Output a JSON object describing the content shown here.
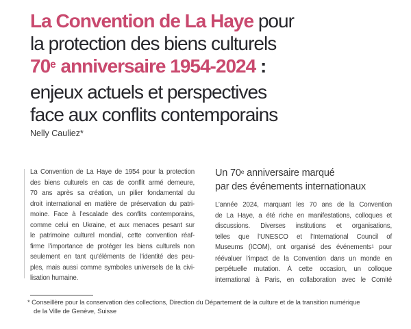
{
  "palette": {
    "accent": "#c9496e",
    "title_dark": "#26262b",
    "body_text": "#3e3e3e",
    "background": "#ffffff"
  },
  "title": {
    "line1_highlight": "La Convention de La Haye",
    "line1_rest": " pour",
    "line2": "la protection des biens culturels",
    "line3_prefix": "70",
    "line3_sup": "e",
    "line3_rest": " anniversaire 1954-2024",
    "line3_colon": " :",
    "line4": "enjeux actuels et perspectives",
    "line5": "face aux conflits contemporains"
  },
  "author": "Nelly Cauliez*",
  "abstract": {
    "lines": [
      "La Convention de La Haye de 1954 pour la protection",
      "des biens culturels en cas de conflit armé demeure,",
      "70 ans après sa création, un pilier fondamental du",
      "droit international en matière de préservation du patri-",
      "moine. Face à l’escalade des conflits contemporains,",
      "comme celui en Ukraine, et aux menaces pesant sur",
      "le patrimoine culturel mondial, cette convention réaf-",
      "firme l’importance de protéger les biens culturels non",
      "seulement en tant qu’éléments de l’identité des peu-",
      "ples, mais aussi comme symboles universels de la civi-",
      "lisation humaine."
    ]
  },
  "section": {
    "heading_line1_prefix": "Un 70",
    "heading_line1_sup": "e",
    "heading_line1_rest": " anniversaire marqué",
    "heading_line2": "par des événements internationaux",
    "body_lines": [
      "L’année 2024, marquant les 70 ans de la Convention",
      "de La Haye, a été riche en manifestations, colloques et",
      "discussions. Diverses institutions et organisations,",
      "telles que l’UNESCO et l’International Council of",
      "",
      "réévaluer l’impact de la Convention dans un monde en",
      "perpétuelle mutation. À cette occasion, un colloque",
      "international à Paris, en collaboration avec le Comité"
    ],
    "body_line5_prefix": "Museums (ICOM), ont organisé des événements",
    "body_line5_sup": "1",
    "body_line5_suffix": " pour"
  },
  "footnote": {
    "marker": "*",
    "line1": " Conseillère pour la conservation des collections, Direction du Département de la culture et de la transition numérique",
    "line2": "de la Ville de Genève, Suisse"
  }
}
